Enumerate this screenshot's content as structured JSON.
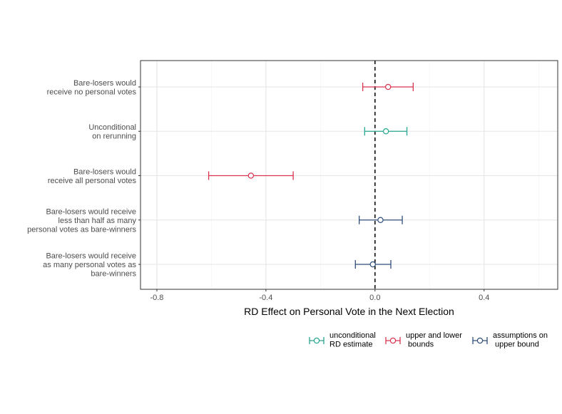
{
  "chart_data": {
    "type": "scatter",
    "subtype": "forest-plot with horizontal error bars",
    "xlabel": "RD Effect on Personal Vote in the Next Election",
    "ylabel": "",
    "xlim": [
      -0.86,
      0.67
    ],
    "xticks": [
      -0.8,
      -0.4,
      0.0,
      0.4
    ],
    "xtick_labels": [
      "-0.8",
      "-0.4",
      "0.0",
      "0.4"
    ],
    "reference_line": {
      "x": 0,
      "style": "dashed"
    },
    "grid": true,
    "legend_position": "bottom",
    "series": [
      {
        "name": "unconditional\nRD estimate",
        "color": "#26a690",
        "legend_lines": [
          "unconditional",
          "RD estimate"
        ]
      },
      {
        "name": "upper and lower\n bounds",
        "color": "#d93450",
        "legend_lines": [
          "upper and lower",
          " bounds"
        ]
      },
      {
        "name": "assumptions on\n upper bound",
        "color": "#2f4f7a",
        "legend_lines": [
          "assumptions on",
          " upper bound"
        ]
      }
    ],
    "rows": [
      {
        "label_lines": [
          "Bare-losers would",
          "receive no personal votes"
        ],
        "estimate": 0.048,
        "lower": -0.045,
        "upper": 0.14,
        "series": 1
      },
      {
        "label_lines": [
          "Unconditional",
          "on rerunning"
        ],
        "estimate": 0.04,
        "lower": -0.038,
        "upper": 0.117,
        "series": 0
      },
      {
        "label_lines": [
          "Bare-losers would",
          "receive all personal votes"
        ],
        "estimate": -0.455,
        "lower": -0.61,
        "upper": -0.3,
        "series": 1
      },
      {
        "label_lines": [
          "Bare-losers would receive",
          "less than half as many",
          "personal votes as bare-winners"
        ],
        "estimate": 0.02,
        "lower": -0.058,
        "upper": 0.1,
        "series": 2
      },
      {
        "label_lines": [
          "Bare-losers would receive",
          "as many personal votes as",
          "bare-winners"
        ],
        "estimate": -0.008,
        "lower": -0.072,
        "upper": 0.058,
        "series": 2
      }
    ]
  }
}
